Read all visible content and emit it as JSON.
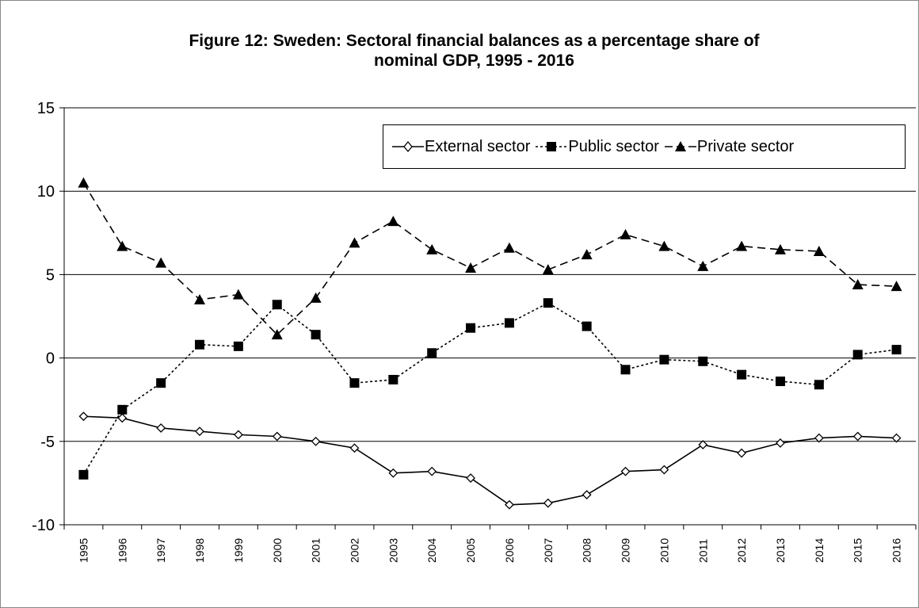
{
  "chart_data": {
    "type": "line",
    "title_line1": "Figure 12: Sweden: Sectoral financial balances as a percentage share of",
    "title_line2": "nominal GDP, 1995 - 2016",
    "x": [
      "1995",
      "1996",
      "1997",
      "1998",
      "1999",
      "2000",
      "2001",
      "2002",
      "2003",
      "2004",
      "2005",
      "2006",
      "2007",
      "2008",
      "2009",
      "2010",
      "2011",
      "2012",
      "2013",
      "2014",
      "2015",
      "2016"
    ],
    "ylim": [
      -10,
      15
    ],
    "yticks": [
      -10,
      -5,
      0,
      5,
      10,
      15
    ],
    "grid": true,
    "legend_position": "top-right",
    "series": [
      {
        "name": "External sector",
        "marker": "diamond-open",
        "dash": "solid",
        "color": "#000000",
        "values": [
          -3.5,
          -3.6,
          -4.2,
          -4.4,
          -4.6,
          -4.7,
          -5.0,
          -5.4,
          -6.9,
          -6.8,
          -7.2,
          -8.8,
          -8.7,
          -8.2,
          -6.8,
          -6.7,
          -5.2,
          -5.7,
          -5.1,
          -4.8,
          -4.7,
          -4.8
        ]
      },
      {
        "name": "Public sector",
        "marker": "square-filled",
        "dash": "dotted",
        "color": "#000000",
        "values": [
          -7.0,
          -3.1,
          -1.5,
          0.8,
          0.7,
          3.2,
          1.4,
          -1.5,
          -1.3,
          0.3,
          1.8,
          2.1,
          3.3,
          1.9,
          -0.7,
          -0.1,
          -0.2,
          -1.0,
          -1.4,
          -1.6,
          0.2,
          0.5
        ]
      },
      {
        "name": "Private sector",
        "marker": "triangle-filled",
        "dash": "dashed",
        "color": "#000000",
        "values": [
          10.5,
          6.7,
          5.7,
          3.5,
          3.8,
          1.4,
          3.6,
          6.9,
          8.2,
          6.5,
          5.4,
          6.6,
          5.3,
          6.2,
          7.4,
          6.7,
          5.5,
          6.7,
          6.5,
          6.4,
          4.4,
          4.3
        ]
      }
    ]
  }
}
